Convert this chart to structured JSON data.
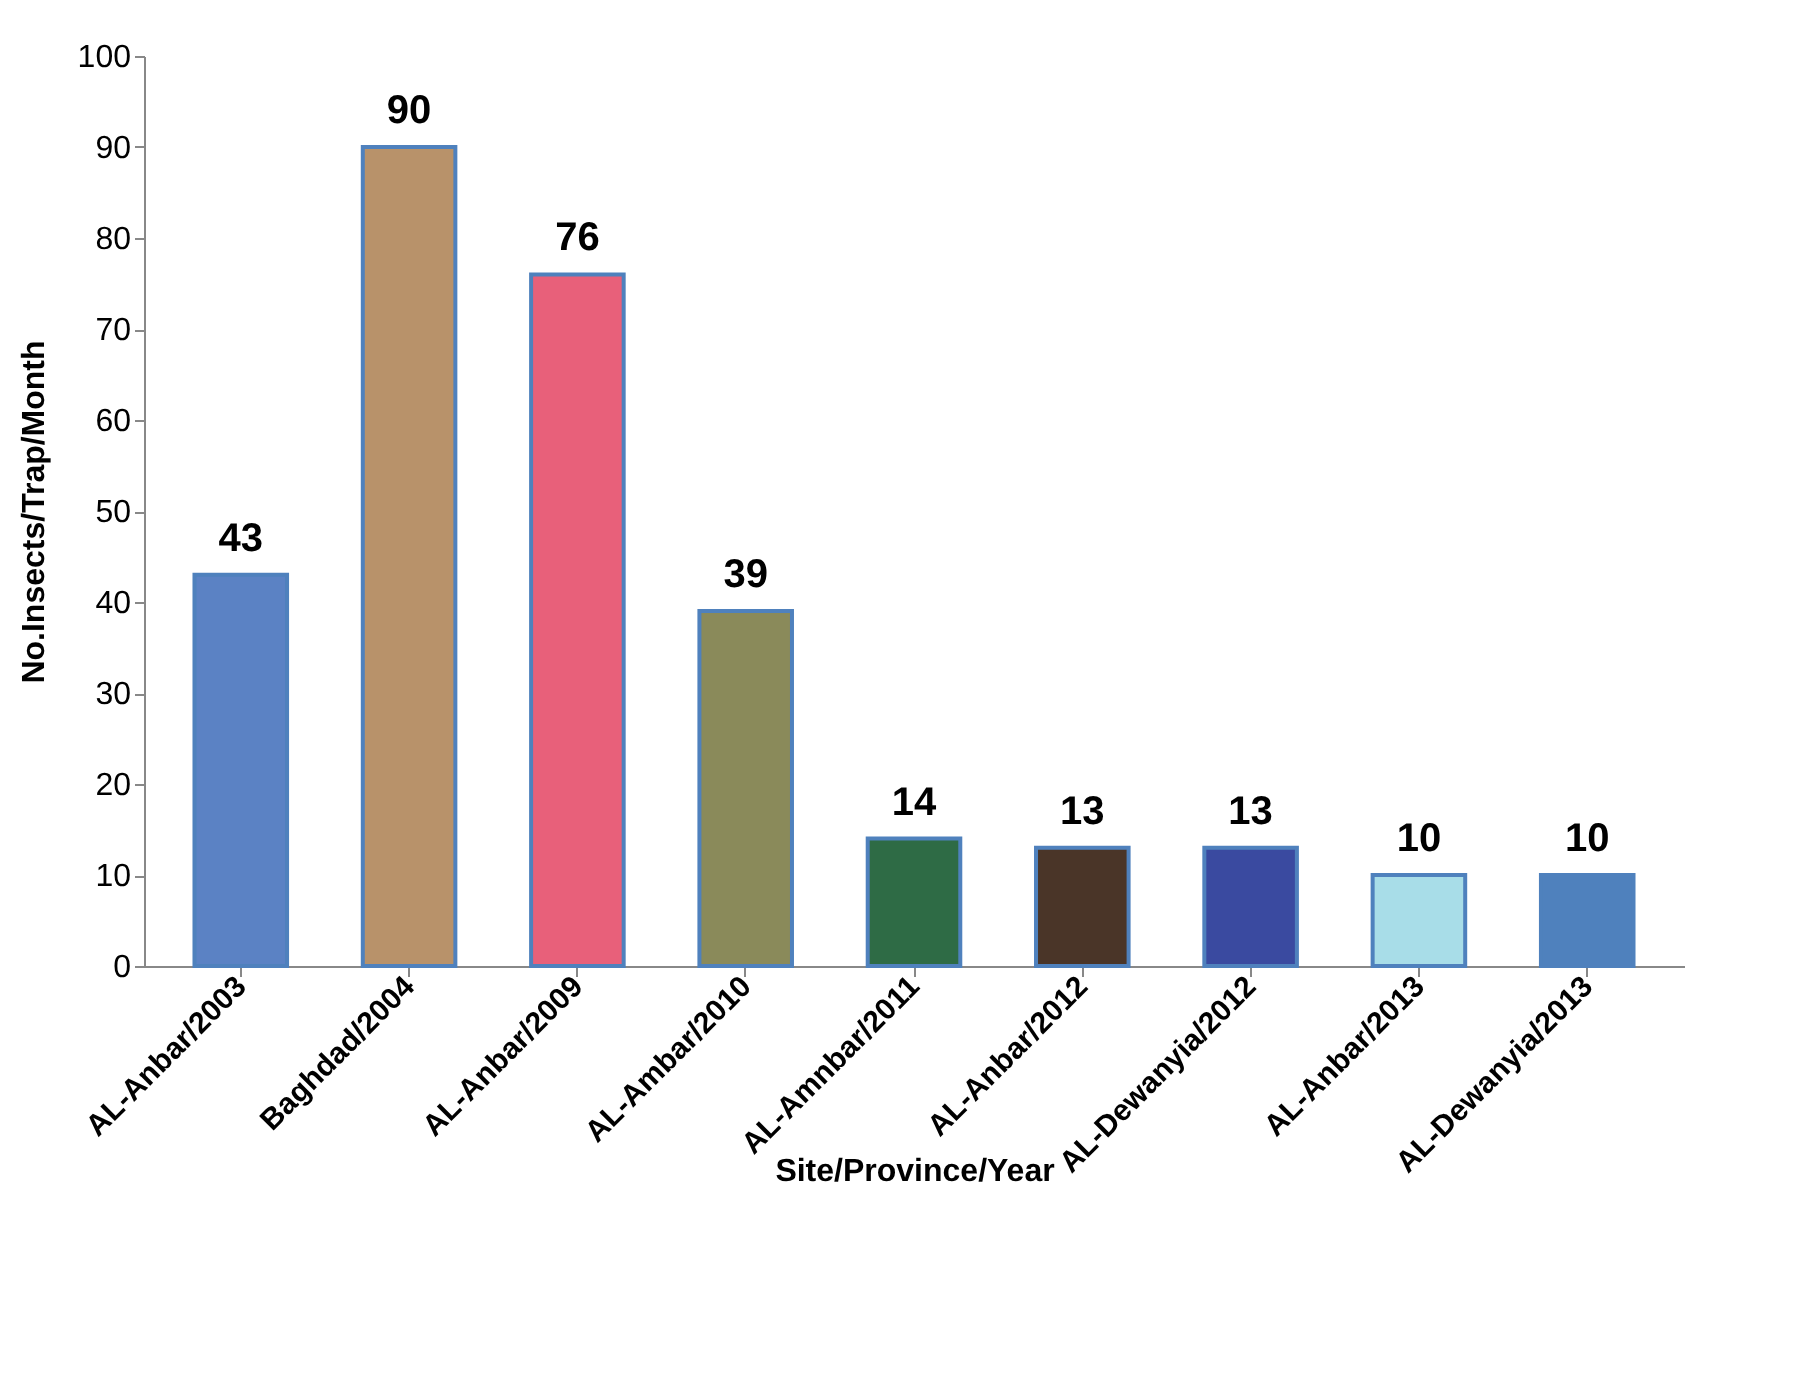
{
  "chart_data": {
    "type": "bar",
    "xlabel": "Site/Province/Year",
    "ylabel": "No.Insects/Trap/Month",
    "categories": [
      "AL-Anbar/2003",
      "Baghdad/2004",
      "AL-Anbar/2009",
      "AL-Ambar/2010",
      "AL-Amnbar/2011",
      "AL-Anbar/2012",
      "AL-Dewanyia/2012",
      "AL-Anbar/2013",
      "AL-Dewanyia/2013"
    ],
    "values": [
      43,
      90,
      76,
      39,
      14,
      13,
      13,
      10,
      10
    ],
    "colors": [
      "#5b82c4",
      "#b8926a",
      "#e8607a",
      "#8a8a5a",
      "#2e6b45",
      "#4a3528",
      "#3a4aa0",
      "#a8dde8",
      "#4f81bd"
    ],
    "ylim": [
      0,
      100
    ],
    "yticks": [
      0,
      10,
      20,
      30,
      40,
      50,
      60,
      70,
      80,
      90,
      100
    ],
    "grid": false,
    "legend": false,
    "data_labels": true
  }
}
